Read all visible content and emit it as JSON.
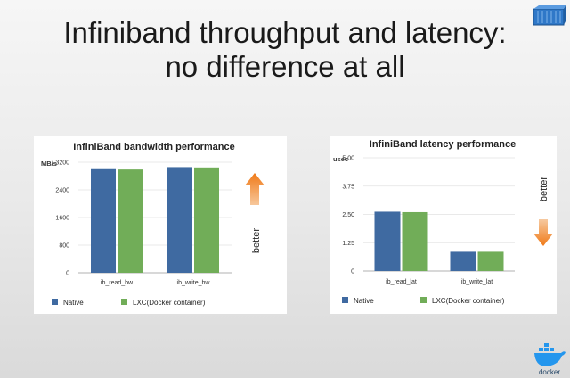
{
  "slide": {
    "title_line1": "Infiniband throughput and latency:",
    "title_line2": "no difference at all"
  },
  "icons": {
    "container": "shipping-container-icon",
    "docker": "docker-whale-logo"
  },
  "colors": {
    "native": "#3f6aa1",
    "lxc": "#71ad58",
    "arrow_up": "#f08a1c",
    "arrow_down": "#f08a1c"
  },
  "chart_data": [
    {
      "type": "bar",
      "title": "InfiniBand bandwidth performance",
      "ylabel": "MB/s",
      "categories": [
        "ib_read_bw",
        "ib_write_bw"
      ],
      "yticks": [
        "0",
        "800",
        "1600",
        "2400",
        "3200"
      ],
      "ylim": [
        0,
        3200
      ],
      "series": [
        {
          "name": "Native",
          "values": [
            3000,
            3060
          ]
        },
        {
          "name": "LXC(Docker container)",
          "values": [
            2990,
            3050
          ]
        }
      ],
      "legend": "bottom",
      "grid": true,
      "annotation": "better",
      "arrow": "up"
    },
    {
      "type": "bar",
      "title": "InfiniBand latency performance",
      "ylabel": "usec",
      "categories": [
        "ib_read_lat",
        "ib_write_lat"
      ],
      "yticks": [
        "0",
        "1.25",
        "2.50",
        "3.75",
        "5.00"
      ],
      "ylim": [
        0,
        5
      ],
      "series": [
        {
          "name": "Native",
          "values": [
            2.62,
            0.85
          ]
        },
        {
          "name": "LXC(Docker container)",
          "values": [
            2.6,
            0.85
          ]
        }
      ],
      "legend": "bottom",
      "grid": true,
      "annotation": "better",
      "arrow": "down"
    }
  ]
}
